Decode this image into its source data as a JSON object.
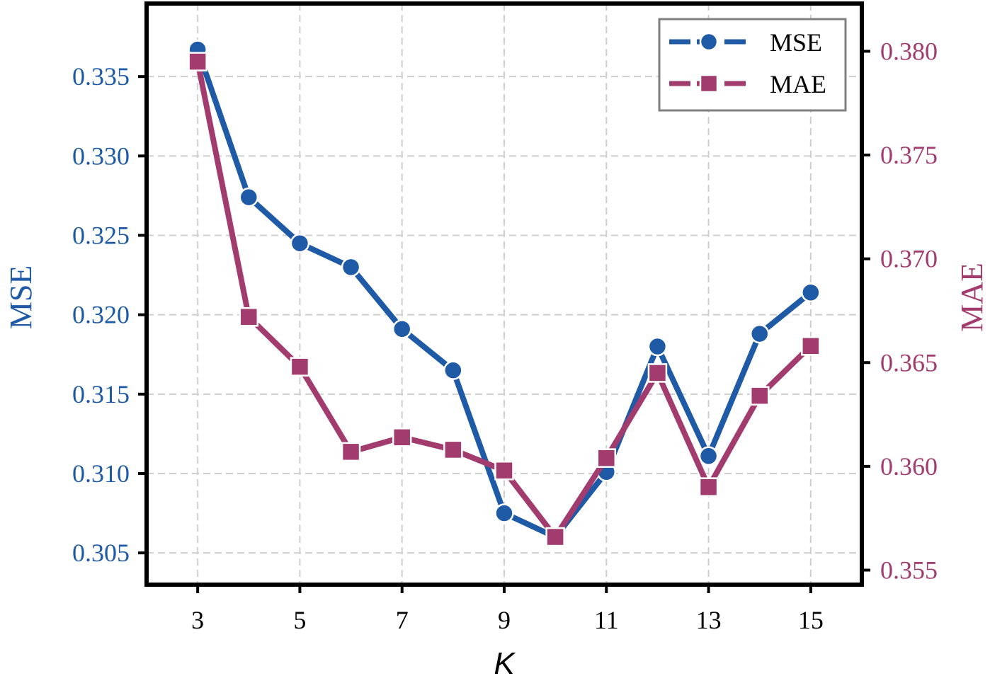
{
  "chart_data": {
    "type": "line",
    "xlabel": "K",
    "ylabel_left": "MSE",
    "ylabel_right": "MAE",
    "x": [
      3,
      4,
      5,
      6,
      7,
      8,
      9,
      10,
      11,
      12,
      13,
      14,
      15
    ],
    "x_ticks": [
      3,
      5,
      7,
      9,
      11,
      13,
      15
    ],
    "xlim": [
      2,
      16
    ],
    "ylim_left": [
      0.303,
      0.3396
    ],
    "yticks_left": [
      "0.305",
      "0.310",
      "0.315",
      "0.320",
      "0.325",
      "0.330",
      "0.335"
    ],
    "ylim_right": [
      0.3543,
      0.3823
    ],
    "yticks_right": [
      "0.355",
      "0.360",
      "0.365",
      "0.370",
      "0.375",
      "0.380"
    ],
    "grid": true,
    "legend_position": "top-right",
    "series": [
      {
        "name": "MSE",
        "axis": "left",
        "color": "#1f5aa6",
        "marker": "circle",
        "values": [
          0.3367,
          0.3274,
          0.3245,
          0.323,
          0.3191,
          0.3165,
          0.3075,
          0.306,
          0.3101,
          0.318,
          0.3111,
          0.3188,
          0.3214
        ]
      },
      {
        "name": "MAE",
        "axis": "right",
        "color": "#a23b6e",
        "marker": "square",
        "values": [
          0.3795,
          0.3672,
          0.3648,
          0.3607,
          0.3614,
          0.3608,
          0.3598,
          0.3566,
          0.3604,
          0.3645,
          0.359,
          0.3634,
          0.3658
        ]
      }
    ]
  }
}
